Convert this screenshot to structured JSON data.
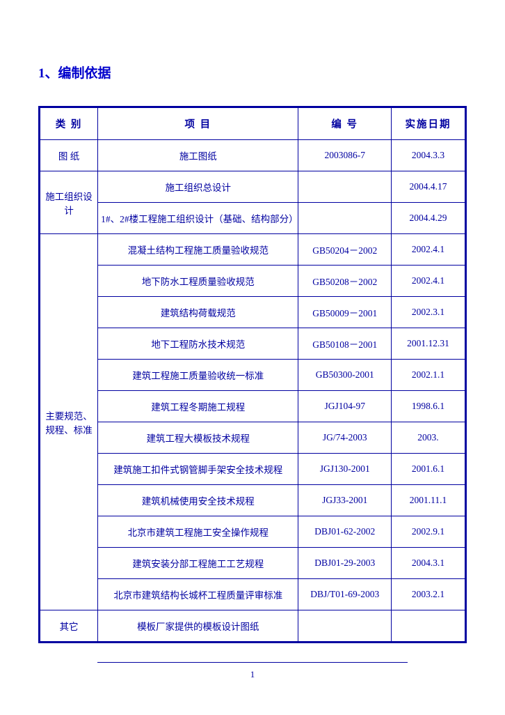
{
  "heading": "1、编制依据",
  "page_number": "1",
  "colors": {
    "border": "#0000a0",
    "text": "#0000a0",
    "heading": "#0000cc",
    "background": "#ffffff"
  },
  "table": {
    "columns": [
      "类 别",
      "项  目",
      "编  号",
      "实施日期"
    ],
    "rows": [
      {
        "cat": "图 纸",
        "cat_rowspan": 1,
        "item": "施工图纸",
        "code": "2003086-7",
        "date": "2004.3.3"
      },
      {
        "cat": "施工组织设计",
        "cat_rowspan": 2,
        "item": "施工组织总设计",
        "code": "",
        "date": "2004.4.17"
      },
      {
        "cat": null,
        "item": "1#、2#楼工程施工组织设计（基础、结构部分）",
        "code": "",
        "date": "2004.4.29"
      },
      {
        "cat": "主要规范、规程、标准",
        "cat_rowspan": 12,
        "item": "混凝土结构工程施工质量验收规范",
        "code": "GB50204－2002",
        "date": "2002.4.1"
      },
      {
        "cat": null,
        "item": "地下防水工程质量验收规范",
        "code": "GB50208－2002",
        "date": "2002.4.1"
      },
      {
        "cat": null,
        "item": "建筑结构荷载规范",
        "code": "GB50009－2001",
        "date": "2002.3.1"
      },
      {
        "cat": null,
        "item": "地下工程防水技术规范",
        "code": "GB50108－2001",
        "date": "2001.12.31"
      },
      {
        "cat": null,
        "item": "建筑工程施工质量验收统一标准",
        "code": "GB50300-2001",
        "date": "2002.1.1"
      },
      {
        "cat": null,
        "item": "建筑工程冬期施工规程",
        "code": "JGJ104-97",
        "date": "1998.6.1"
      },
      {
        "cat": null,
        "item": "建筑工程大模板技术规程",
        "code": "JG/74-2003",
        "date": "2003."
      },
      {
        "cat": null,
        "item": "建筑施工扣件式钢管脚手架安全技术规程",
        "code": "JGJ130-2001",
        "date": "2001.6.1"
      },
      {
        "cat": null,
        "item": "建筑机械使用安全技术规程",
        "code": "JGJ33-2001",
        "date": "2001.11.1"
      },
      {
        "cat": null,
        "item": "北京市建筑工程施工安全操作规程",
        "code": "DBJ01-62-2002",
        "date": "2002.9.1"
      },
      {
        "cat": null,
        "item": "建筑安装分部工程施工工艺规程",
        "code": "DBJ01-29-2003",
        "date": "2004.3.1"
      },
      {
        "cat": null,
        "item": "北京市建筑结构长城杯工程质量评审标准",
        "code": "DBJ/T01-69-2003",
        "date": "2003.2.1"
      },
      {
        "cat": "其它",
        "cat_rowspan": 1,
        "item": "模板厂家提供的模板设计图纸",
        "code": "",
        "date": ""
      }
    ]
  }
}
